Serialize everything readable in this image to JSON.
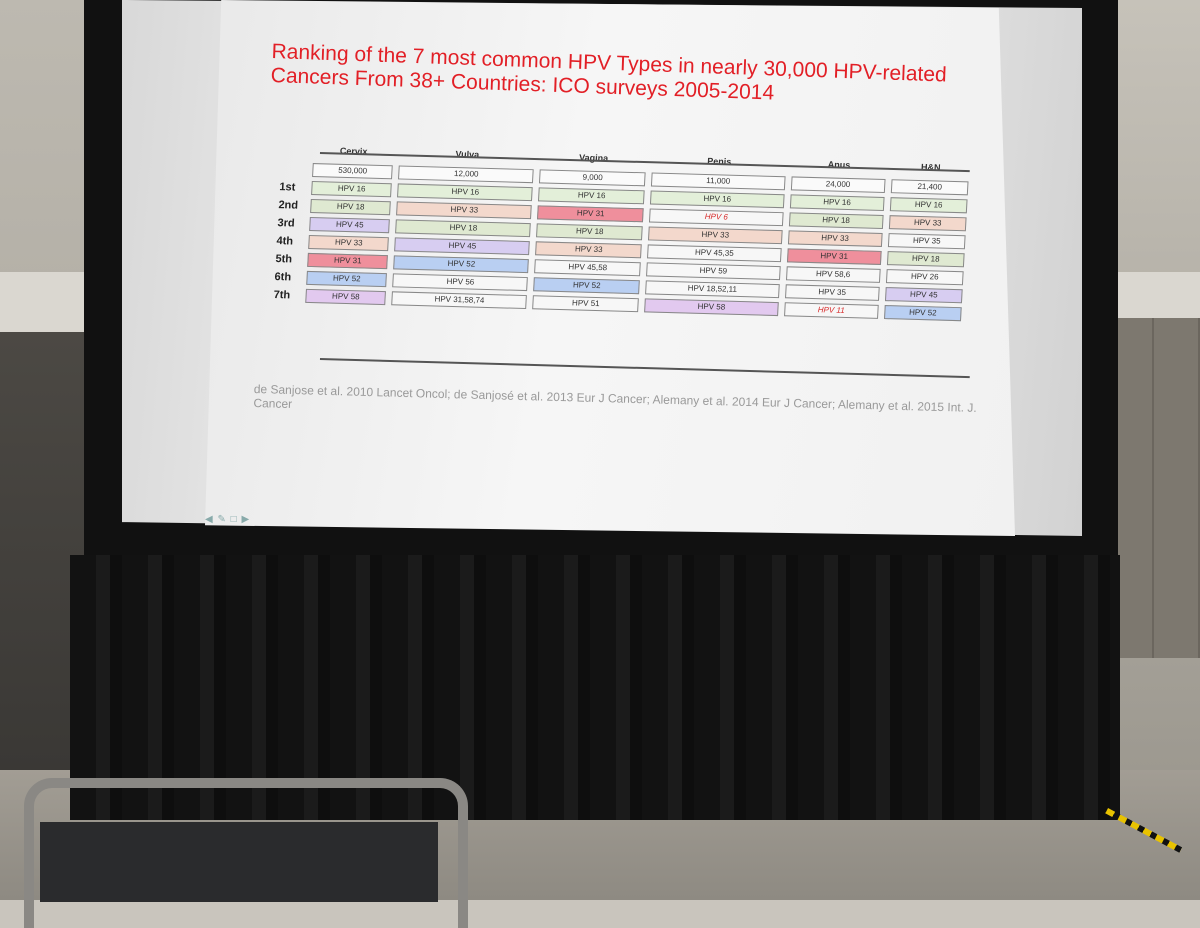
{
  "slide": {
    "title": "Ranking of the 7 most common HPV Types in nearly 30,000 HPV-related Cancers From 38+ Countries: ICO surveys 2005-2014",
    "columns": [
      "Cervix",
      "Vulva",
      "Vagina",
      "Penis",
      "Anus",
      "H&N"
    ],
    "counts": [
      "530,000",
      "12,000",
      "9,000",
      "11,000",
      "24,000",
      "21,400"
    ],
    "ranks": [
      {
        "label": "1st",
        "cells": [
          "HPV 16",
          "HPV 16",
          "HPV 16",
          "HPV 16",
          "HPV 16",
          "HPV 16"
        ]
      },
      {
        "label": "2nd",
        "cells": [
          "HPV 18",
          "HPV 33",
          "HPV 31",
          "HPV 6",
          "HPV 18",
          "HPV 33"
        ]
      },
      {
        "label": "3rd",
        "cells": [
          "HPV 45",
          "HPV 18",
          "HPV 18",
          "HPV 33",
          "HPV 33",
          "HPV 35"
        ]
      },
      {
        "label": "4th",
        "cells": [
          "HPV 33",
          "HPV 45",
          "HPV 33",
          "HPV 45,35",
          "HPV 31",
          "HPV 18"
        ]
      },
      {
        "label": "5th",
        "cells": [
          "HPV 31",
          "HPV 52",
          "HPV 45,58",
          "HPV 59",
          "HPV 58,6",
          "HPV 26"
        ]
      },
      {
        "label": "6th",
        "cells": [
          "HPV 52",
          "HPV 56",
          "HPV 52",
          "HPV 18,52,11",
          "HPV 35",
          "HPV 45"
        ]
      },
      {
        "label": "7th",
        "cells": [
          "HPV 58",
          "HPV 31,58,74",
          "HPV 51",
          "HPV 58",
          "HPV 11",
          "HPV 52"
        ]
      }
    ],
    "references": "de Sanjose et al. 2010 Lancet Oncol; de Sanjosé et al. 2013 Eur J Cancer; Alemany et al. 2014 Eur J Cancer; Alemany et al. 2015 Int. J. Cancer",
    "type_colors": {
      "HPV 16": "#e3efd9",
      "HPV 18": "#dfe9d1",
      "HPV 31": "#ef8f9c",
      "HPV 33": "#f3d8cc",
      "HPV 45": "#d7cdf1",
      "HPV 52": "#b9cff2",
      "HPV 58": "#e2c9ef",
      "other": "#f7f7f7",
      "red_text": "#d72b2b"
    }
  }
}
